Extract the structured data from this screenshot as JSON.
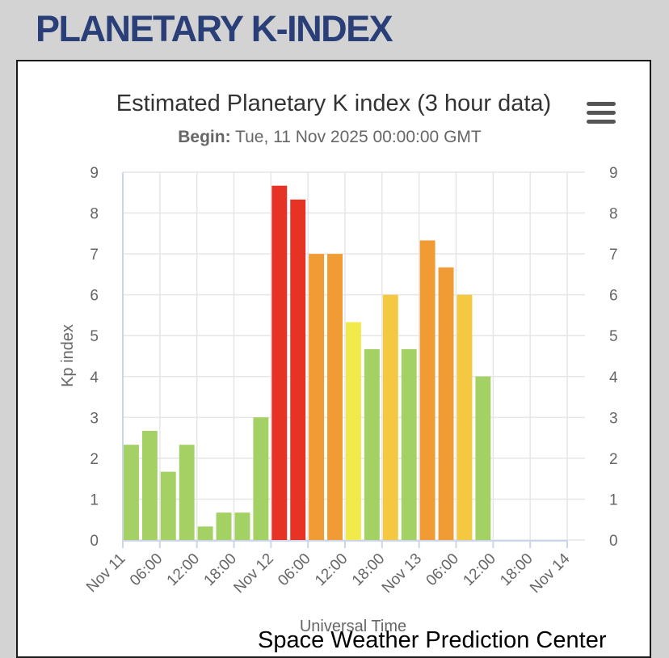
{
  "page": {
    "header": "PLANETARY K-INDEX",
    "credit": "Space Weather Prediction Center"
  },
  "chart_data": {
    "type": "bar",
    "title": "Estimated Planetary K index (3 hour data)",
    "subtitle_label": "Begin:",
    "subtitle_value": "Tue, 11 Nov 2025 00:00:00 GMT",
    "xlabel": "Universal Time",
    "ylabel": "Kp index",
    "ylim": [
      0,
      9
    ],
    "yticks": [
      "0",
      "1",
      "2",
      "3",
      "4",
      "5",
      "6",
      "7",
      "8",
      "9"
    ],
    "x_range_hours": [
      0,
      72
    ],
    "xticks": [
      {
        "hour": 0,
        "label": "Nov 11"
      },
      {
        "hour": 6,
        "label": "06:00"
      },
      {
        "hour": 12,
        "label": "12:00"
      },
      {
        "hour": 18,
        "label": "18:00"
      },
      {
        "hour": 24,
        "label": "Nov 12"
      },
      {
        "hour": 30,
        "label": "06:00"
      },
      {
        "hour": 36,
        "label": "12:00"
      },
      {
        "hour": 42,
        "label": "18:00"
      },
      {
        "hour": 48,
        "label": "Nov 13"
      },
      {
        "hour": 54,
        "label": "06:00"
      },
      {
        "hour": 60,
        "label": "12:00"
      },
      {
        "hour": 66,
        "label": "18:00"
      },
      {
        "hour": 72,
        "label": "Nov 14"
      }
    ],
    "bar_interval_hours": 3,
    "values": [
      2.33,
      2.67,
      1.67,
      2.33,
      0.33,
      0.67,
      0.67,
      3.0,
      8.67,
      8.33,
      7.0,
      7.0,
      5.33,
      4.67,
      6.0,
      4.67,
      7.33,
      6.67,
      6.0,
      4.0
    ],
    "color_scale": [
      {
        "min": 0,
        "color": "#a3d164"
      },
      {
        "min": 5,
        "color": "#f2e94a"
      },
      {
        "min": 5.67,
        "color": "#f5c842"
      },
      {
        "min": 6.67,
        "color": "#f09b33"
      },
      {
        "min": 8,
        "color": "#e63325"
      }
    ],
    "grid": true,
    "right_axis_mirrors_left": true
  }
}
